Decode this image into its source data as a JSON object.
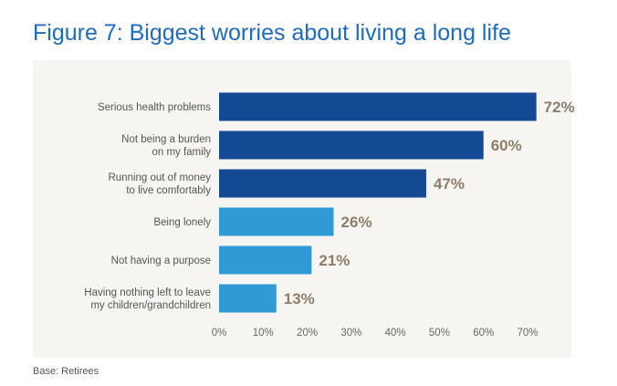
{
  "title": "Figure 7: Biggest worries about living a long life",
  "footnote": "Base: Retirees",
  "colors": {
    "dark_bar": "#134a93",
    "light_bar": "#2e9bd6",
    "data_label": "#8c7e6a",
    "panel": "#f7f5f1",
    "title": "#1e6cc0"
  },
  "chart_data": {
    "type": "bar",
    "orientation": "horizontal",
    "categories": [
      [
        "Serious health problems"
      ],
      [
        "Not being a burden",
        "on my family"
      ],
      [
        "Running out of money",
        "to live comfortably"
      ],
      [
        "Being lonely"
      ],
      [
        "Not having a purpose"
      ],
      [
        "Having nothing left to leave",
        "my children/grandchildren"
      ]
    ],
    "values": [
      72,
      60,
      47,
      26,
      21,
      13
    ],
    "value_labels": [
      "72%",
      "60%",
      "47%",
      "26%",
      "21%",
      "13%"
    ],
    "bar_colors": [
      "dark",
      "dark",
      "dark",
      "light",
      "light",
      "light"
    ],
    "xlim": [
      0,
      70
    ],
    "ticks": [
      0,
      10,
      20,
      30,
      40,
      50,
      60,
      70
    ],
    "tick_labels": [
      "0%",
      "10%",
      "20%",
      "30%",
      "40%",
      "50%",
      "60%",
      "70%"
    ],
    "grid": false,
    "legend": "none"
  }
}
